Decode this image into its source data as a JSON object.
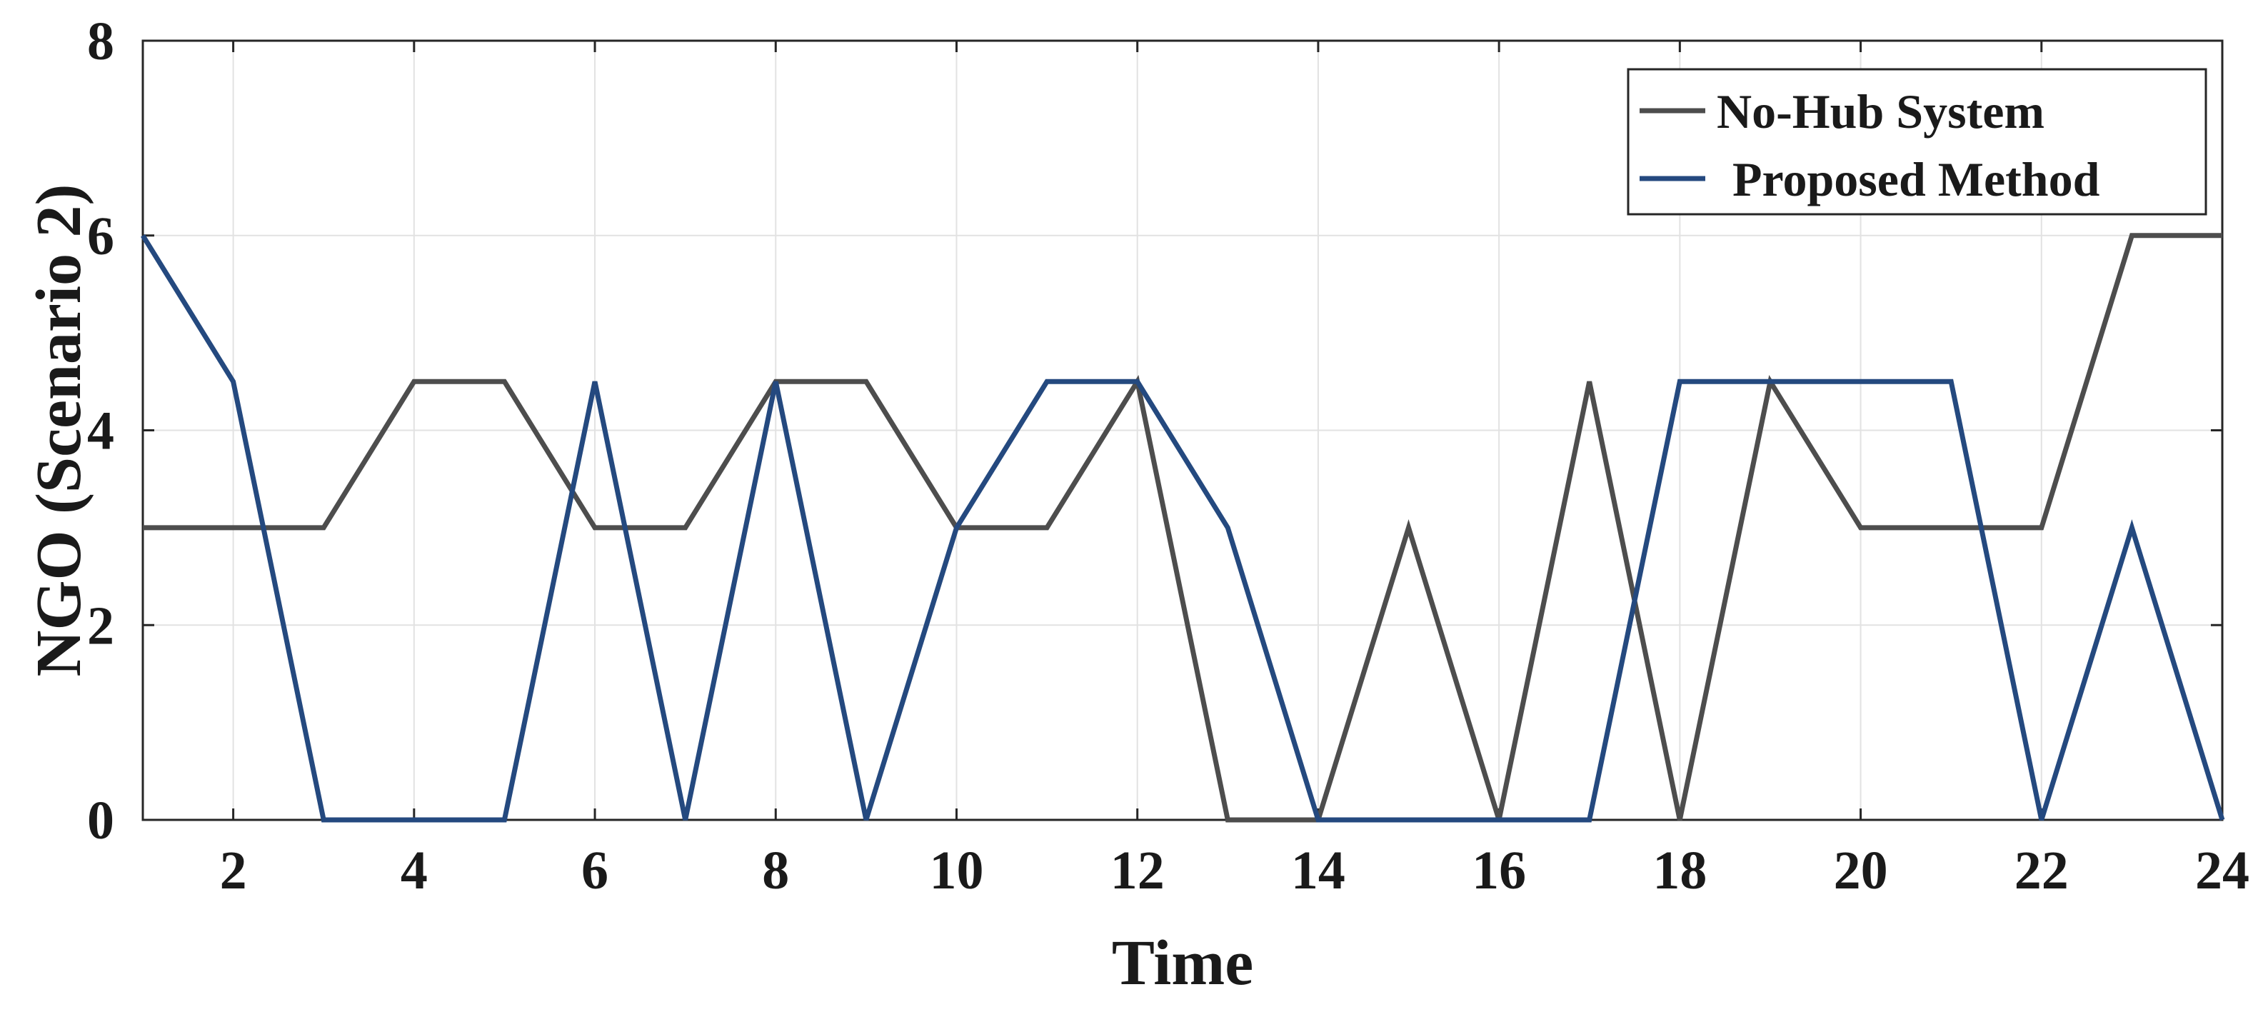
{
  "chart_data": {
    "type": "line",
    "title": "",
    "xlabel": "Time",
    "ylabel": "NGO (Scenario 2)",
    "xlim": [
      1,
      24
    ],
    "ylim": [
      0,
      8
    ],
    "xticks": [
      2,
      4,
      6,
      8,
      10,
      12,
      14,
      16,
      18,
      20,
      22,
      24
    ],
    "yticks": [
      0,
      2,
      4,
      6,
      8
    ],
    "grid": true,
    "legend_position": "top-right",
    "x": [
      1,
      2,
      3,
      4,
      5,
      6,
      7,
      8,
      9,
      10,
      11,
      12,
      13,
      14,
      15,
      16,
      17,
      18,
      19,
      20,
      21,
      22,
      23,
      24
    ],
    "series": [
      {
        "name": "No-Hub System",
        "color": "#4d4d4d",
        "values": [
          3,
          3,
          3,
          4.5,
          4.5,
          3,
          3,
          4.5,
          4.5,
          3,
          3,
          4.5,
          0,
          0,
          3,
          0,
          4.5,
          0,
          4.5,
          3,
          3,
          3,
          6,
          6
        ]
      },
      {
        "name": "Proposed Method",
        "color": "#24497f",
        "values": [
          6,
          4.5,
          0,
          0,
          0,
          4.5,
          0,
          4.5,
          0,
          3,
          4.5,
          4.5,
          3,
          0,
          0,
          0,
          0,
          4.5,
          4.5,
          4.5,
          4.5,
          0,
          3,
          0
        ]
      }
    ]
  }
}
